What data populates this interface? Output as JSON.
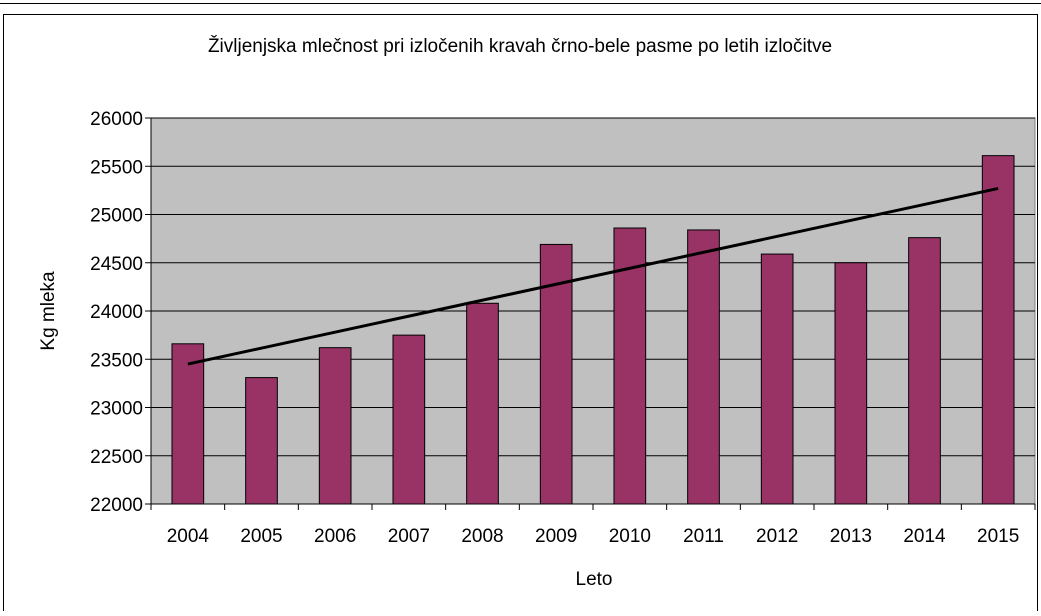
{
  "chart_data": {
    "type": "bar",
    "title": "Življenjska mlečnost pri izločenih kravah črno-bele pasme po letih izločitve",
    "xlabel": "Leto",
    "ylabel": "Kg mleka",
    "ylim": [
      22000,
      26000
    ],
    "yticks": [
      22000,
      22500,
      23000,
      23500,
      24000,
      24500,
      25000,
      25500,
      26000
    ],
    "categories": [
      "2004",
      "2005",
      "2006",
      "2007",
      "2008",
      "2009",
      "2010",
      "2011",
      "2012",
      "2013",
      "2014",
      "2015"
    ],
    "values": [
      23660,
      23310,
      23620,
      23750,
      24080,
      24690,
      24860,
      24840,
      24590,
      24500,
      24760,
      25610
    ],
    "trendline": {
      "type": "linear",
      "start": 23450,
      "end": 25270
    },
    "grid": true,
    "legend": "none"
  },
  "colors": {
    "bar_fill": "#993366",
    "plot_background": "#c0c0c0",
    "gridline": "#000000",
    "trendline": "#000000"
  }
}
